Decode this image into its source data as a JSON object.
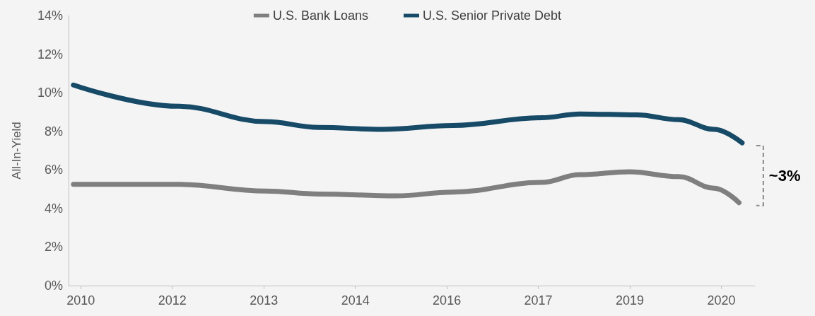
{
  "chart_data": {
    "type": "line",
    "ylabel": "All-In-Yield",
    "annotations": [
      "~3%"
    ],
    "xlim": [
      2009.8,
      2021.05
    ],
    "xticks": [
      {
        "value": 2010,
        "label": "2010"
      },
      {
        "value": 2011.5,
        "label": "2012"
      },
      {
        "value": 2013,
        "label": "2013"
      },
      {
        "value": 2014.5,
        "label": "2014"
      },
      {
        "value": 2016,
        "label": "2016"
      },
      {
        "value": 2017.5,
        "label": "2017"
      },
      {
        "value": 2019,
        "label": "2019"
      },
      {
        "value": 2020.5,
        "label": "2020"
      }
    ],
    "ylim": [
      0,
      14
    ],
    "yticks": [
      {
        "value": 0,
        "label": "0%"
      },
      {
        "value": 2,
        "label": "2%"
      },
      {
        "value": 4,
        "label": "4%"
      },
      {
        "value": 6,
        "label": "6%"
      },
      {
        "value": 8,
        "label": "8%"
      },
      {
        "value": 10,
        "label": "10%"
      },
      {
        "value": 12,
        "label": "12%"
      },
      {
        "value": 14,
        "label": "14%"
      }
    ],
    "grid": false,
    "legend": "top",
    "marker": "none",
    "line_style": "solid",
    "series": [
      {
        "name": "U.S. Bank Loans",
        "color": "#7f7f7f",
        "x": [
          2009.88,
          2011.59,
          2013.03,
          2013.9,
          2015.17,
          2016.1,
          2017.55,
          2018.18,
          2018.99,
          2019.8,
          2020.38,
          2020.79
        ],
        "values": [
          5.25,
          5.25,
          4.9,
          4.75,
          4.65,
          4.85,
          5.35,
          5.75,
          5.9,
          5.65,
          5.05,
          4.3
        ]
      },
      {
        "name": "U.S. Senior Private Debt",
        "color": "#164a67",
        "x": [
          2009.88,
          2011.59,
          2013.03,
          2013.9,
          2014.94,
          2016.1,
          2017.55,
          2018.18,
          2019.11,
          2019.8,
          2020.38,
          2020.84
        ],
        "values": [
          10.4,
          9.3,
          8.5,
          8.2,
          8.1,
          8.3,
          8.7,
          8.9,
          8.85,
          8.6,
          8.1,
          7.4
        ]
      }
    ]
  }
}
